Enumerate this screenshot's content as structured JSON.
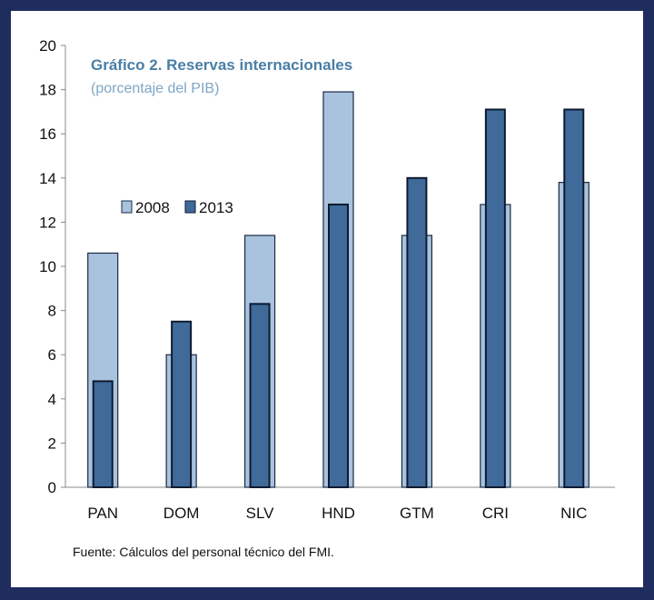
{
  "chart_data": {
    "type": "bar",
    "title": "Gráfico 2. Reservas internacionales",
    "subtitle": "(porcentaje del PIB)",
    "categories": [
      "PAN",
      "DOM",
      "SLV",
      "HND",
      "GTM",
      "CRI",
      "NIC"
    ],
    "series": [
      {
        "name": "2008",
        "values": [
          10.6,
          6.0,
          11.4,
          17.9,
          11.4,
          12.8,
          13.8
        ],
        "color": "#a9c3de"
      },
      {
        "name": "2013",
        "values": [
          4.8,
          7.5,
          8.3,
          12.8,
          14.0,
          17.1,
          17.1
        ],
        "color": "#3f6a9a"
      }
    ],
    "ylim": [
      0,
      20
    ],
    "yticks": [
      0,
      2,
      4,
      6,
      8,
      10,
      12,
      14,
      16,
      18,
      20
    ],
    "grid": false,
    "legend_position": "upper-left",
    "source": "Fuente: Cálculos del personal técnico del FMI."
  }
}
